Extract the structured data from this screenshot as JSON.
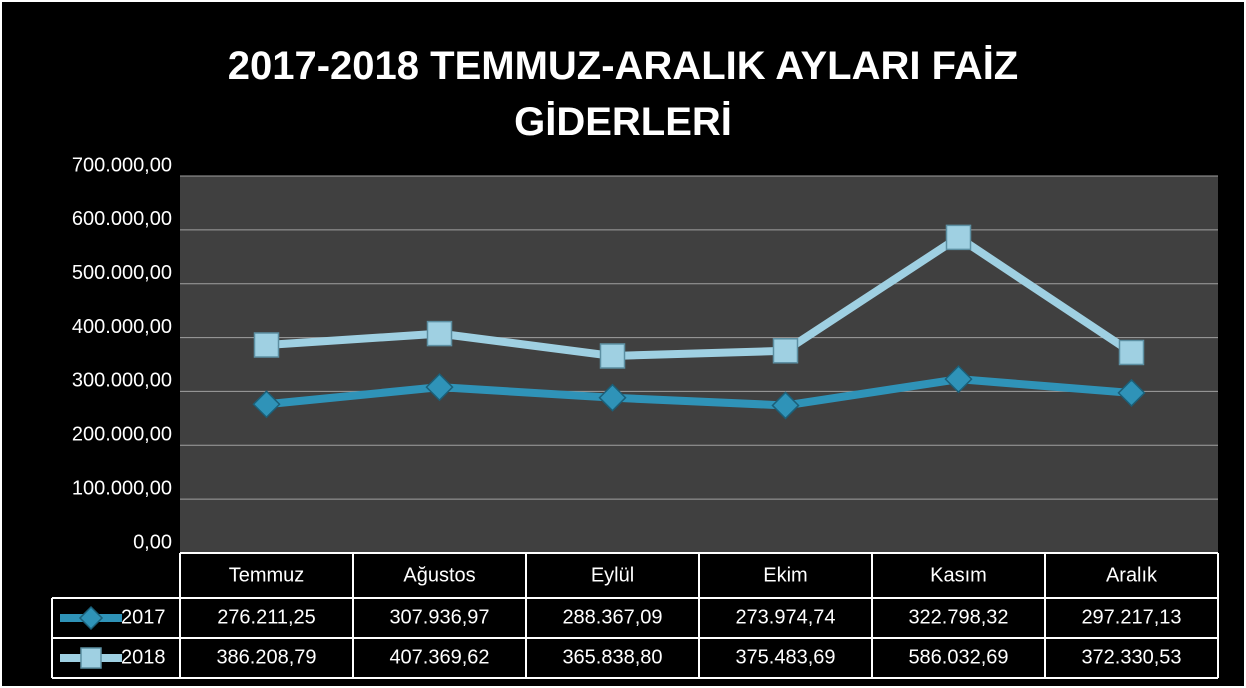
{
  "chart_data": {
    "type": "line",
    "title": "2017-2018 TEMMUZ-ARALIK AYLARI FAİZ GİDERLERİ",
    "categories": [
      "Temmuz",
      "Ağustos",
      "Eylül",
      "Ekim",
      "Kasım",
      "Aralık"
    ],
    "series": [
      {
        "name": "2017",
        "color": "#2f93b8",
        "marker": "diamond",
        "values": [
          276211.25,
          307936.97,
          288367.09,
          273974.74,
          322798.32,
          297217.13
        ],
        "value_labels": [
          "276.211,25",
          "307.936,97",
          "288.367,09",
          "273.974,74",
          "322.798,32",
          "297.217,13"
        ]
      },
      {
        "name": "2018",
        "color": "#9fd0e2",
        "marker": "square",
        "values": [
          386208.79,
          407369.62,
          365838.8,
          375483.69,
          586032.69,
          372330.53
        ],
        "value_labels": [
          "386.208,79",
          "407.369,62",
          "365.838,80",
          "375.483,69",
          "586.032,69",
          "372.330,53"
        ]
      }
    ],
    "ylim": [
      0,
      700000
    ],
    "yticks": [
      {
        "value": 0,
        "label": "0,00"
      },
      {
        "value": 100000,
        "label": "100.000,00"
      },
      {
        "value": 200000,
        "label": "200.000,00"
      },
      {
        "value": 300000,
        "label": "300.000,00"
      },
      {
        "value": 400000,
        "label": "400.000,00"
      },
      {
        "value": 500000,
        "label": "500.000,00"
      },
      {
        "value": 600000,
        "label": "600.000,00"
      },
      {
        "value": 700000,
        "label": "700.000,00"
      }
    ],
    "grid": true
  }
}
